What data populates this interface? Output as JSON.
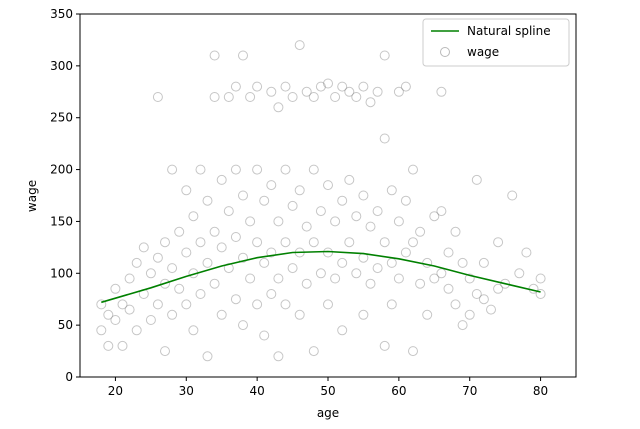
{
  "chart_data": {
    "type": "scatter",
    "title": "",
    "xlabel": "age",
    "ylabel": "wage",
    "xlim": [
      15,
      85
    ],
    "ylim": [
      0,
      350
    ],
    "xticks": [
      20,
      30,
      40,
      50,
      60,
      70,
      80
    ],
    "yticks": [
      0,
      50,
      100,
      150,
      200,
      250,
      300,
      350
    ],
    "grid": false,
    "legend_position": "top-right",
    "series": [
      {
        "name": "Natural spline",
        "kind": "line",
        "color": "#008000",
        "x": [
          18,
          20,
          25,
          30,
          35,
          40,
          45,
          50,
          55,
          60,
          65,
          70,
          75,
          80
        ],
        "y": [
          72,
          76,
          86,
          97,
          107,
          115,
          120,
          121,
          119,
          114,
          107,
          98,
          90,
          82
        ]
      },
      {
        "name": "wage",
        "kind": "scatter",
        "color": "#808080",
        "marker": "open-circle",
        "points": [
          [
            18,
            70
          ],
          [
            18,
            45
          ],
          [
            19,
            60
          ],
          [
            19,
            30
          ],
          [
            20,
            85
          ],
          [
            20,
            55
          ],
          [
            21,
            70
          ],
          [
            21,
            30
          ],
          [
            22,
            95
          ],
          [
            22,
            65
          ],
          [
            23,
            110
          ],
          [
            23,
            45
          ],
          [
            24,
            80
          ],
          [
            24,
            125
          ],
          [
            25,
            100
          ],
          [
            25,
            55
          ],
          [
            26,
            270
          ],
          [
            26,
            115
          ],
          [
            26,
            70
          ],
          [
            27,
            130
          ],
          [
            27,
            90
          ],
          [
            27,
            25
          ],
          [
            28,
            200
          ],
          [
            28,
            105
          ],
          [
            28,
            60
          ],
          [
            29,
            140
          ],
          [
            29,
            85
          ],
          [
            30,
            180
          ],
          [
            30,
            120
          ],
          [
            30,
            70
          ],
          [
            31,
            155
          ],
          [
            31,
            100
          ],
          [
            31,
            45
          ],
          [
            32,
            200
          ],
          [
            32,
            130
          ],
          [
            32,
            80
          ],
          [
            33,
            170
          ],
          [
            33,
            110
          ],
          [
            33,
            20
          ],
          [
            34,
            310
          ],
          [
            34,
            270
          ],
          [
            34,
            140
          ],
          [
            34,
            90
          ],
          [
            35,
            190
          ],
          [
            35,
            125
          ],
          [
            35,
            60
          ],
          [
            36,
            270
          ],
          [
            36,
            160
          ],
          [
            36,
            105
          ],
          [
            37,
            280
          ],
          [
            37,
            200
          ],
          [
            37,
            135
          ],
          [
            37,
            75
          ],
          [
            38,
            310
          ],
          [
            38,
            175
          ],
          [
            38,
            115
          ],
          [
            38,
            50
          ],
          [
            39,
            270
          ],
          [
            39,
            150
          ],
          [
            39,
            95
          ],
          [
            40,
            280
          ],
          [
            40,
            200
          ],
          [
            40,
            130
          ],
          [
            40,
            70
          ],
          [
            41,
            170
          ],
          [
            41,
            110
          ],
          [
            41,
            40
          ],
          [
            42,
            275
          ],
          [
            42,
            185
          ],
          [
            42,
            120
          ],
          [
            42,
            80
          ],
          [
            43,
            260
          ],
          [
            43,
            150
          ],
          [
            43,
            95
          ],
          [
            43,
            20
          ],
          [
            44,
            280
          ],
          [
            44,
            200
          ],
          [
            44,
            130
          ],
          [
            44,
            70
          ],
          [
            45,
            270
          ],
          [
            45,
            165
          ],
          [
            45,
            105
          ],
          [
            46,
            320
          ],
          [
            46,
            180
          ],
          [
            46,
            120
          ],
          [
            46,
            60
          ],
          [
            47,
            275
          ],
          [
            47,
            145
          ],
          [
            47,
            90
          ],
          [
            48,
            270
          ],
          [
            48,
            200
          ],
          [
            48,
            130
          ],
          [
            48,
            25
          ],
          [
            49,
            280
          ],
          [
            49,
            160
          ],
          [
            49,
            100
          ],
          [
            50,
            283
          ],
          [
            50,
            185
          ],
          [
            50,
            120
          ],
          [
            50,
            70
          ],
          [
            51,
            270
          ],
          [
            51,
            150
          ],
          [
            51,
            95
          ],
          [
            52,
            280
          ],
          [
            52,
            170
          ],
          [
            52,
            110
          ],
          [
            52,
            45
          ],
          [
            53,
            275
          ],
          [
            53,
            190
          ],
          [
            53,
            130
          ],
          [
            54,
            270
          ],
          [
            54,
            155
          ],
          [
            54,
            100
          ],
          [
            55,
            280
          ],
          [
            55,
            175
          ],
          [
            55,
            115
          ],
          [
            55,
            60
          ],
          [
            56,
            265
          ],
          [
            56,
            145
          ],
          [
            56,
            90
          ],
          [
            57,
            275
          ],
          [
            57,
            160
          ],
          [
            57,
            105
          ],
          [
            58,
            310
          ],
          [
            58,
            230
          ],
          [
            58,
            130
          ],
          [
            58,
            30
          ],
          [
            59,
            180
          ],
          [
            59,
            110
          ],
          [
            59,
            70
          ],
          [
            60,
            275
          ],
          [
            60,
            150
          ],
          [
            60,
            95
          ],
          [
            61,
            280
          ],
          [
            61,
            170
          ],
          [
            61,
            120
          ],
          [
            62,
            200
          ],
          [
            62,
            130
          ],
          [
            62,
            25
          ],
          [
            63,
            140
          ],
          [
            63,
            90
          ],
          [
            64,
            110
          ],
          [
            64,
            60
          ],
          [
            65,
            155
          ],
          [
            65,
            95
          ],
          [
            66,
            275
          ],
          [
            66,
            160
          ],
          [
            66,
            100
          ],
          [
            67,
            120
          ],
          [
            67,
            85
          ],
          [
            68,
            140
          ],
          [
            68,
            70
          ],
          [
            69,
            110
          ],
          [
            69,
            50
          ],
          [
            70,
            95
          ],
          [
            70,
            60
          ],
          [
            71,
            190
          ],
          [
            71,
            80
          ],
          [
            72,
            110
          ],
          [
            72,
            75
          ],
          [
            73,
            65
          ],
          [
            74,
            130
          ],
          [
            74,
            85
          ],
          [
            75,
            90
          ],
          [
            76,
            175
          ],
          [
            77,
            100
          ],
          [
            78,
            120
          ],
          [
            79,
            85
          ],
          [
            80,
            95
          ],
          [
            80,
            80
          ]
        ]
      }
    ]
  }
}
